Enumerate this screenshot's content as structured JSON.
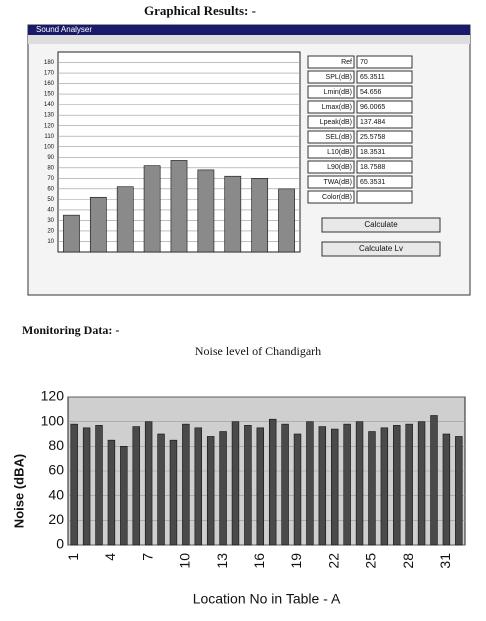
{
  "heading": "Graphical Results: -",
  "window": {
    "title": "Sound Analyser",
    "fields": [
      {
        "label": "Ref",
        "value": "70"
      },
      {
        "label": "SPL(dB)",
        "value": "65.3511"
      },
      {
        "label": "Lmin(dB)",
        "value": "54.656"
      },
      {
        "label": "Lmax(dB)",
        "value": "96.0065"
      },
      {
        "label": "Lpeak(dB)",
        "value": "137.484"
      },
      {
        "label": "SEL(dB)",
        "value": "25.5758"
      },
      {
        "label": "L10(dB)",
        "value": "18.3531"
      },
      {
        "label": "L90(dB)",
        "value": "18.7588"
      },
      {
        "label": "TWA(dB)",
        "value": "65.3531"
      },
      {
        "label": "Color(dB)"
      }
    ],
    "buttons": [
      "Calculate",
      "Calculate Lv"
    ]
  },
  "section": "Monitoring Data: -",
  "chart_data": [
    {
      "type": "bar",
      "values": [
        35,
        52,
        62,
        82,
        87,
        78,
        72,
        70,
        60
      ],
      "color": "#8a8a8a",
      "ylim": [
        0,
        190
      ],
      "yticks": [
        10,
        20,
        30,
        40,
        50,
        60,
        70,
        80,
        90,
        100,
        110,
        120,
        130,
        140,
        150,
        160,
        170,
        180
      ]
    },
    {
      "type": "bar",
      "title": "Noise level of Chandigarh",
      "categories": [
        "1",
        null,
        null,
        "4",
        null,
        null,
        "7",
        null,
        null,
        "10",
        null,
        null,
        "13",
        null,
        null,
        "16",
        null,
        null,
        "19",
        null,
        null,
        "22",
        null,
        null,
        "25",
        null,
        null,
        "28",
        null,
        null,
        "31",
        null
      ],
      "values": [
        98,
        95,
        97,
        85,
        80,
        96,
        100,
        90,
        85,
        98,
        95,
        88,
        92,
        100,
        97,
        95,
        102,
        98,
        90,
        100,
        96,
        94,
        98,
        100,
        92,
        95,
        97,
        98,
        100,
        105,
        90,
        88
      ],
      "color": "#4a4a4a",
      "ylim": [
        0,
        120
      ],
      "yticks": [
        0,
        20,
        40,
        60,
        80,
        100,
        120
      ],
      "xlabel": "Location No in Table - A",
      "ylabel": "Noise (dBA)"
    }
  ]
}
